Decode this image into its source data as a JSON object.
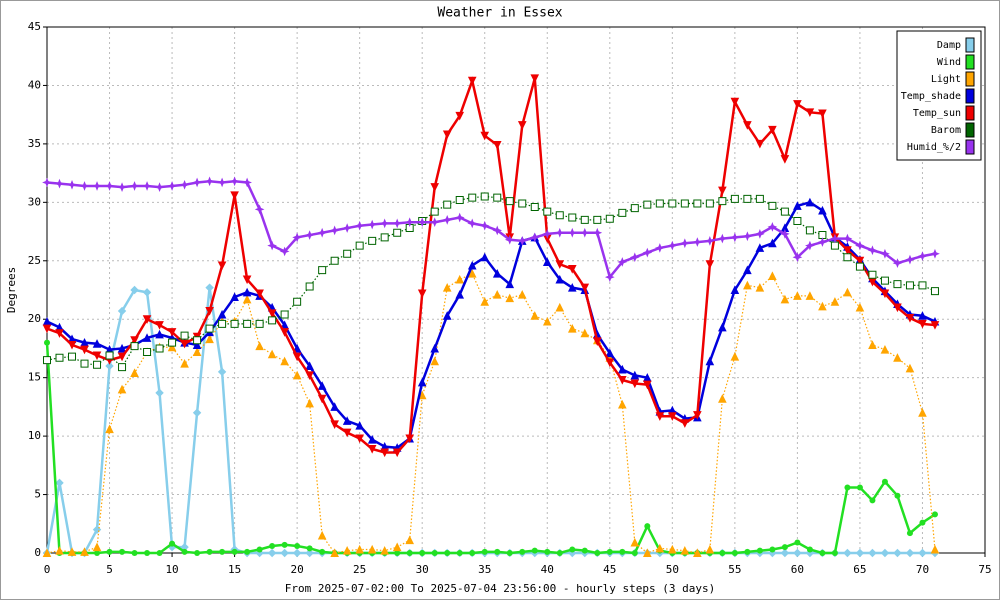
{
  "chart_data": {
    "type": "line",
    "title": "Weather in Essex",
    "xlabel": "From 2025-07-02:00 To 2025-07-04 23:56:00 - hourly steps (3 days)",
    "ylabel": "Degrees",
    "x": [
      0,
      1,
      2,
      3,
      4,
      5,
      6,
      7,
      8,
      9,
      10,
      11,
      12,
      13,
      14,
      15,
      16,
      17,
      18,
      19,
      20,
      21,
      22,
      23,
      24,
      25,
      26,
      27,
      28,
      29,
      30,
      31,
      32,
      33,
      34,
      35,
      36,
      37,
      38,
      39,
      40,
      41,
      42,
      43,
      44,
      45,
      46,
      47,
      48,
      49,
      50,
      51,
      52,
      53,
      54,
      55,
      56,
      57,
      58,
      59,
      60,
      61,
      62,
      63,
      64,
      65,
      66,
      67,
      68,
      69,
      70,
      71
    ],
    "xlim": [
      0,
      75
    ],
    "xticks": [
      0,
      5,
      10,
      15,
      20,
      25,
      30,
      35,
      40,
      45,
      50,
      55,
      60,
      65,
      70,
      75
    ],
    "ylim": [
      0,
      45
    ],
    "yticks": [
      0,
      5,
      10,
      15,
      20,
      25,
      30,
      35,
      40,
      45
    ],
    "grid": true,
    "legend": "top-right",
    "series": [
      {
        "name": "Damp",
        "color": "#87ceeb",
        "marker": "diamond",
        "style": "solid",
        "values": [
          0,
          6,
          0,
          0,
          2,
          16,
          20.7,
          22.5,
          22.3,
          13.7,
          0.5,
          0.5,
          12,
          22.7,
          15.5,
          0.3,
          0,
          0,
          0,
          0,
          0,
          0,
          0,
          0,
          0,
          0,
          0,
          0,
          0,
          0,
          0,
          0,
          0,
          0,
          0,
          0,
          0,
          0,
          0,
          0,
          0,
          0,
          0,
          0,
          0,
          0,
          0,
          0,
          0,
          0,
          0,
          0,
          0,
          0,
          0,
          0,
          0,
          0,
          0,
          0,
          0,
          0,
          0,
          0,
          0,
          0,
          0,
          0,
          0,
          0,
          0,
          0
        ]
      },
      {
        "name": "Wind",
        "color": "#22e022",
        "marker": "circle",
        "style": "solid",
        "values": [
          18,
          0,
          0,
          0,
          0,
          0.1,
          0.1,
          0,
          0,
          0,
          0.8,
          0.1,
          0,
          0.1,
          0.1,
          0.1,
          0.1,
          0.3,
          0.6,
          0.7,
          0.6,
          0.4,
          0.1,
          0,
          0,
          0,
          0,
          0,
          0,
          0,
          0,
          0,
          0,
          0,
          0,
          0.1,
          0.1,
          0,
          0.1,
          0.2,
          0.1,
          0,
          0.3,
          0.2,
          0,
          0.1,
          0.1,
          0,
          2.3,
          0.2,
          0,
          0,
          0,
          0,
          0,
          0,
          0.1,
          0.2,
          0.3,
          0.5,
          0.9,
          0.3,
          0,
          0,
          5.6,
          5.6,
          4.5,
          6.1,
          4.9,
          1.7,
          2.6,
          3.3
        ]
      },
      {
        "name": "Light",
        "color": "#ffa500",
        "marker": "triangle-up",
        "style": "dotted",
        "values": [
          0,
          0.2,
          0.1,
          0.1,
          0.5,
          10.6,
          14,
          15.4,
          17.2,
          17.6,
          17.6,
          16.2,
          17.2,
          18.3,
          19.8,
          19.8,
          21.7,
          17.7,
          17,
          16.4,
          15.2,
          12.8,
          1.5,
          0,
          0.2,
          0.3,
          0.3,
          0.2,
          0.5,
          1.1,
          13.5,
          16.4,
          22.7,
          23.4,
          23.9,
          21.5,
          22.1,
          21.8,
          22.1,
          20.3,
          19.8,
          21,
          19.2,
          18.8,
          18.2,
          16.7,
          12.7,
          0.9,
          0,
          0.4,
          0.3,
          0.2,
          0,
          0.3,
          13.2,
          16.8,
          22.9,
          22.7,
          23.7,
          21.7,
          22,
          22,
          21.1,
          21.5,
          22.3,
          21,
          17.8,
          17.4,
          16.7,
          15.8,
          12,
          0.3
        ]
      },
      {
        "name": "Temp_shade",
        "color": "#0000dd",
        "marker": "triangle-up",
        "style": "solid",
        "values": [
          19.8,
          19.3,
          18.3,
          18,
          17.9,
          17.4,
          17.5,
          17.8,
          18.4,
          18.7,
          18.4,
          18,
          17.8,
          18.9,
          20.4,
          21.9,
          22.3,
          22,
          21,
          19.5,
          17.5,
          16,
          14.3,
          12.5,
          11.3,
          10.9,
          9.7,
          9.1,
          9,
          9.8,
          14.6,
          17.5,
          20.3,
          22.1,
          24.6,
          25.3,
          23.9,
          23,
          26.7,
          27,
          24.9,
          23.4,
          22.7,
          22.5,
          18.7,
          17.1,
          15.7,
          15.2,
          15,
          12.1,
          12.2,
          11.5,
          11.6,
          16.4,
          19.3,
          22.5,
          24.2,
          26.1,
          26.5,
          27.8,
          29.7,
          30,
          29.3,
          27,
          26.2,
          25.1,
          23.5,
          22.4,
          21.3,
          20.4,
          20.3,
          19.8
        ]
      },
      {
        "name": "Temp_sun",
        "color": "#ee0000",
        "marker": "triangle-down",
        "style": "solid",
        "values": [
          19.2,
          18.8,
          17.8,
          17.4,
          16.9,
          16.5,
          16.8,
          18.2,
          20,
          19.5,
          18.9,
          17.9,
          18.5,
          20.7,
          24.6,
          30.6,
          23.4,
          22.2,
          20.5,
          18.9,
          16.8,
          15.2,
          13.2,
          11,
          10.3,
          9.8,
          8.9,
          8.6,
          8.6,
          9.8,
          22.2,
          31.3,
          35.8,
          37.4,
          40.4,
          35.7,
          34.9,
          27,
          36.6,
          40.6,
          26.9,
          24.7,
          24.3,
          22.7,
          18.1,
          16.3,
          14.8,
          14.5,
          14.4,
          11.7,
          11.7,
          11.1,
          11.8,
          24.7,
          31,
          38.6,
          36.6,
          35,
          36.2,
          33.7,
          38.4,
          37.7,
          37.6,
          27,
          25.9,
          25,
          23.2,
          22.2,
          21,
          20.1,
          19.6,
          19.5
        ]
      },
      {
        "name": "Barom",
        "color": "#006400",
        "marker": "square",
        "style": "dotted",
        "values": [
          16.5,
          16.7,
          16.8,
          16.2,
          16.1,
          16.9,
          15.9,
          17.7,
          17.2,
          17.5,
          18,
          18.6,
          18.2,
          19.2,
          19.6,
          19.6,
          19.6,
          19.6,
          19.9,
          20.4,
          21.5,
          22.8,
          24.2,
          25,
          25.6,
          26.3,
          26.7,
          27,
          27.4,
          27.8,
          28.4,
          29.2,
          29.8,
          30.2,
          30.4,
          30.5,
          30.4,
          30.1,
          29.9,
          29.6,
          29.2,
          28.9,
          28.7,
          28.5,
          28.5,
          28.6,
          29.1,
          29.5,
          29.8,
          29.9,
          29.9,
          29.9,
          29.9,
          29.9,
          30.1,
          30.3,
          30.3,
          30.3,
          29.7,
          29.2,
          28.4,
          27.6,
          27.2,
          26.3,
          25.3,
          24.5,
          23.8,
          23.3,
          23,
          22.9,
          22.9,
          22.4
        ]
      },
      {
        "name": "Humid_%/2",
        "color": "#9933ee",
        "marker": "star",
        "style": "solid",
        "values": [
          31.7,
          31.6,
          31.5,
          31.4,
          31.4,
          31.4,
          31.3,
          31.4,
          31.4,
          31.3,
          31.4,
          31.5,
          31.7,
          31.8,
          31.7,
          31.8,
          31.7,
          29.4,
          26.3,
          25.8,
          27,
          27.2,
          27.4,
          27.6,
          27.8,
          28,
          28.1,
          28.2,
          28.2,
          28.3,
          28.3,
          28.3,
          28.5,
          28.7,
          28.2,
          28,
          27.6,
          26.8,
          26.7,
          27,
          27.3,
          27.4,
          27.4,
          27.4,
          27.4,
          23.6,
          24.9,
          25.3,
          25.7,
          26.1,
          26.3,
          26.5,
          26.6,
          26.7,
          26.9,
          27,
          27.1,
          27.3,
          27.9,
          27.3,
          25.3,
          26.3,
          26.6,
          26.9,
          26.9,
          26.3,
          25.9,
          25.6,
          24.8,
          25.1,
          25.4,
          25.6
        ]
      }
    ]
  }
}
